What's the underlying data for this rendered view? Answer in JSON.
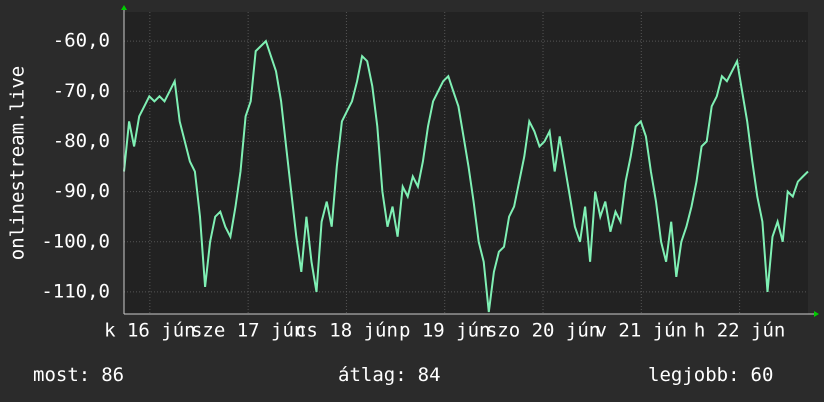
{
  "chart_data": {
    "type": "line",
    "y_label": "onlinestream.live",
    "series": [
      {
        "color": "#7ff0b4",
        "values": [
          -86,
          -76,
          -81,
          -75,
          -73,
          -71,
          -72,
          -71,
          -72,
          -70,
          -68,
          -76,
          -80,
          -84,
          -86,
          -95,
          -109,
          -100,
          -95,
          -94,
          -97,
          -99,
          -93,
          -86,
          -75,
          -72,
          -62,
          -61,
          -60,
          -63,
          -66,
          -72,
          -81,
          -90,
          -99,
          -106,
          -95,
          -104,
          -110,
          -96,
          -92,
          -97,
          -85,
          -76,
          -74,
          -72,
          -68,
          -63,
          -64,
          -69,
          -77,
          -90,
          -97,
          -93,
          -99,
          -89,
          -91,
          -87,
          -89,
          -84,
          -77,
          -72,
          -70,
          -68,
          -67,
          -70,
          -73,
          -79,
          -85,
          -92,
          -100,
          -104,
          -114,
          -106,
          -102,
          -101,
          -95,
          -93,
          -88,
          -83,
          -76,
          -78,
          -81,
          -80,
          -78,
          -86,
          -79,
          -85,
          -91,
          -97,
          -100,
          -93,
          -104,
          -90,
          -95,
          -92,
          -98,
          -94,
          -96,
          -88,
          -83,
          -77,
          -76,
          -79,
          -86,
          -92,
          -100,
          -104,
          -96,
          -107,
          -100,
          -97,
          -93,
          -88,
          -81,
          -80,
          -73,
          -71,
          -67,
          -68,
          -66,
          -64,
          -70,
          -76,
          -84,
          -91,
          -96,
          -110,
          -99,
          -96,
          -100,
          -90,
          -91,
          -88,
          -87,
          -86
        ]
      }
    ],
    "xlim": [
      0,
      135
    ],
    "xticks": [
      {
        "value": 5.1,
        "label": "k 16 jún"
      },
      {
        "value": 24.5,
        "label": "sze 17 jún"
      },
      {
        "value": 43.9,
        "label": "cs 18 jún"
      },
      {
        "value": 63.3,
        "label": "p 19 jún"
      },
      {
        "value": 82.7,
        "label": "szo 20 jún"
      },
      {
        "value": 102.1,
        "label": "v 21 jún"
      },
      {
        "value": 121.5,
        "label": "h 22 jún"
      }
    ],
    "ylim": [
      -114.4,
      -54.2
    ],
    "yticks": [
      {
        "value": -60,
        "label": "-60,0"
      },
      {
        "value": -70,
        "label": "-70,0"
      },
      {
        "value": -80,
        "label": "-80,0"
      },
      {
        "value": -90,
        "label": "-90,0"
      },
      {
        "value": -100,
        "label": "-100,0"
      },
      {
        "value": -110,
        "label": "-110,0"
      }
    ],
    "grid": true,
    "stats": [
      {
        "label": "most:",
        "value": 86
      },
      {
        "label": "átlag:",
        "value": 84
      },
      {
        "label": "legjobb:",
        "value": 60
      }
    ]
  }
}
